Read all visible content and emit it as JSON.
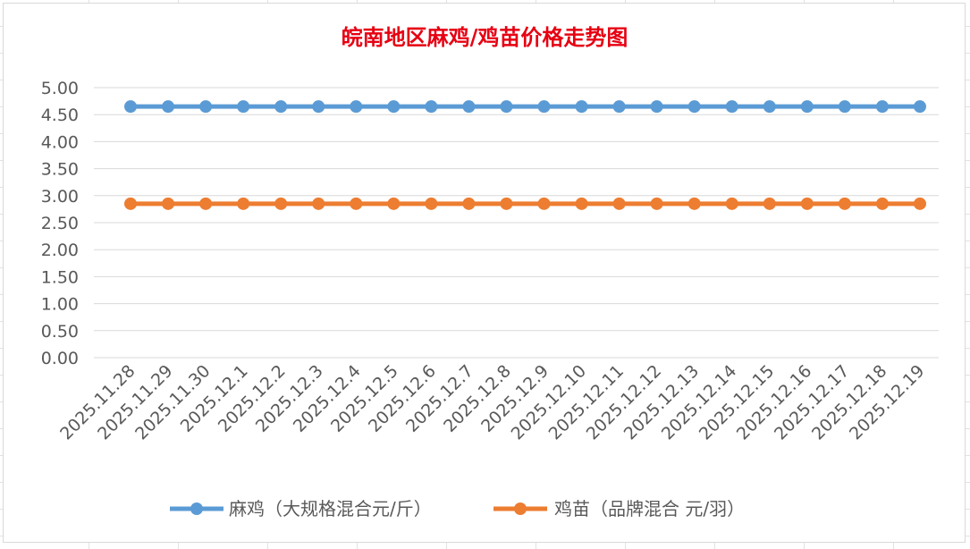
{
  "chart_data": {
    "type": "line",
    "title": "皖南地区麻鸡/鸡苗价格走势图",
    "xlabel": "",
    "ylabel": "",
    "categories": [
      "2025.11.28",
      "2025.11.29",
      "2025.11.30",
      "2025.12.1",
      "2025.12.2",
      "2025.12.3",
      "2025.12.4",
      "2025.12.5",
      "2025.12.6",
      "2025.12.7",
      "2025.12.8",
      "2025.12.9",
      "2025.12.10",
      "2025.12.11",
      "2025.12.12",
      "2025.12.13",
      "2025.12.14",
      "2025.12.15",
      "2025.12.16",
      "2025.12.17",
      "2025.12.18",
      "2025.12.19"
    ],
    "yticks": [
      "0.00",
      "0.50",
      "1.00",
      "1.50",
      "2.00",
      "2.50",
      "3.00",
      "3.50",
      "4.00",
      "4.50",
      "5.00"
    ],
    "ylim": [
      0,
      5
    ],
    "grid": true,
    "legend_position": "bottom",
    "series": [
      {
        "name": "麻鸡（大规格混合元/斤）",
        "color": "#5b9bd5",
        "values": [
          4.65,
          4.65,
          4.65,
          4.65,
          4.65,
          4.65,
          4.65,
          4.65,
          4.65,
          4.65,
          4.65,
          4.65,
          4.65,
          4.65,
          4.65,
          4.65,
          4.65,
          4.65,
          4.65,
          4.65,
          4.65,
          4.65
        ]
      },
      {
        "name": "鸡苗（品牌混合 元/羽）",
        "color": "#ed7d31",
        "values": [
          2.85,
          2.85,
          2.85,
          2.85,
          2.85,
          2.85,
          2.85,
          2.85,
          2.85,
          2.85,
          2.85,
          2.85,
          2.85,
          2.85,
          2.85,
          2.85,
          2.85,
          2.85,
          2.85,
          2.85,
          2.85,
          2.85
        ]
      }
    ]
  }
}
